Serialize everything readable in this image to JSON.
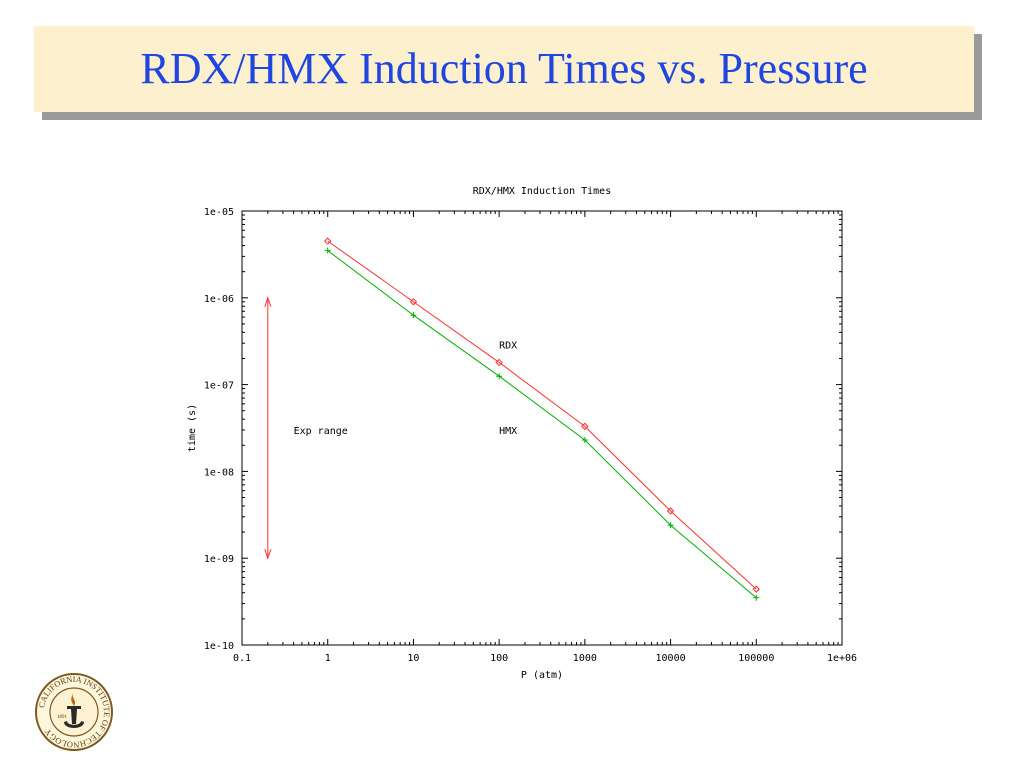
{
  "slide": {
    "title": "RDX/HMX Induction Times vs. Pressure"
  },
  "seal": {
    "icon": "caltech-seal-icon",
    "text": "CALIFORNIA INSTITUTE OF TECHNOLOGY",
    "year": "1891"
  },
  "chart_data": {
    "type": "line",
    "title": "RDX/HMX Induction Times",
    "xlabel": "P (atm)",
    "ylabel": "time (s)",
    "x_scale": "log",
    "y_scale": "log",
    "xlim": [
      0.1,
      1000000
    ],
    "ylim": [
      1e-10,
      1e-05
    ],
    "x_ticks": [
      0.1,
      1,
      10,
      100,
      1000,
      10000,
      100000,
      1000000
    ],
    "x_tick_labels": [
      "0.1",
      "1",
      "10",
      "100",
      "1000",
      "10000",
      "100000",
      "1e+06"
    ],
    "y_ticks": [
      1e-10,
      1e-09,
      1e-08,
      1e-07,
      1e-06,
      1e-05
    ],
    "y_tick_labels": [
      "1e-10",
      "1e-09",
      "1e-08",
      "1e-07",
      "1e-06",
      "1e-05"
    ],
    "grid": false,
    "legend": "none",
    "series": [
      {
        "name": "RDX",
        "color": "#ff3030",
        "marker": "diamond",
        "x": [
          1,
          10,
          100,
          1000,
          10000,
          100000
        ],
        "y": [
          4.5e-06,
          9e-07,
          1.8e-07,
          3.3e-08,
          3.5e-09,
          4.4e-10
        ],
        "label_pos": {
          "x": 100,
          "y": 2.9e-07
        }
      },
      {
        "name": "HMX",
        "color": "#00b000",
        "marker": "plus",
        "x": [
          1,
          10,
          100,
          1000,
          10000,
          100000
        ],
        "y": [
          3.5e-06,
          6.3e-07,
          1.25e-07,
          2.3e-08,
          2.4e-09,
          3.5e-10
        ],
        "label_pos": {
          "x": 100,
          "y": 3e-08
        }
      }
    ],
    "annotations": [
      {
        "id": "exp-range",
        "text": "Exp range",
        "color": "#ff3030",
        "arrow_x": 0.2,
        "y_from": 1e-09,
        "y_to": 1e-06,
        "text_pos": {
          "x": 0.4,
          "y": 3e-08
        }
      }
    ]
  }
}
